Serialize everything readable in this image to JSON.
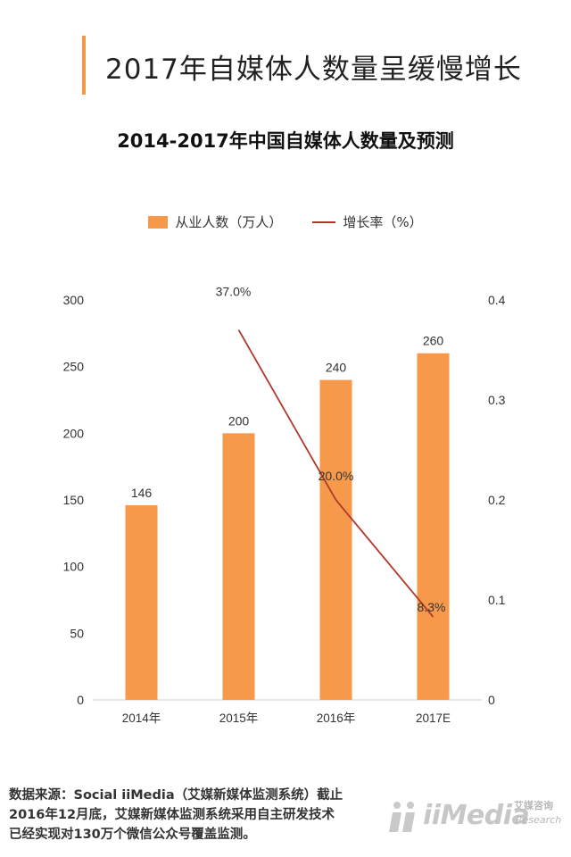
{
  "header": {
    "title": "2017年自媒体人数量呈缓慢增长",
    "accent_color": "#f29a4a"
  },
  "chart_data": {
    "type": "bar",
    "title": "2014-2017年中国自媒体人数量及预测",
    "categories": [
      "2014年",
      "2015年",
      "2016年",
      "2017E"
    ],
    "series": [
      {
        "name": "从业人数（万人）",
        "type": "bar",
        "axis": "left",
        "values": [
          146,
          200,
          240,
          260
        ],
        "labels": [
          "146",
          "200",
          "240",
          "260"
        ],
        "color": "#f7994a"
      },
      {
        "name": "增长率（%）",
        "type": "line",
        "axis": "right",
        "x": [
          "2015年",
          "2016年",
          "2017E"
        ],
        "values": [
          0.37,
          0.2,
          0.083
        ],
        "labels": [
          "37.0%",
          "20.0%",
          "8.3%"
        ],
        "color": "#b0392c"
      }
    ],
    "ylim_left": [
      0,
      300
    ],
    "yticks_left": [
      0,
      50,
      100,
      150,
      200,
      250,
      300
    ],
    "ytick_labels_left": [
      "0",
      "50",
      "100",
      "150",
      "200",
      "250",
      "300"
    ],
    "ylim_right": [
      0,
      0.4
    ],
    "yticks_right": [
      0,
      0.1,
      0.2,
      0.3,
      0.4
    ],
    "ytick_labels_right": [
      "0",
      "0.1",
      "0.2",
      "0.3",
      "0.4"
    ],
    "legend_position": "top-center",
    "grid": false
  },
  "footer": {
    "source_line1": "数据来源：Social iiMedia（艾媒新媒体监测系统）截止",
    "source_line2": "2016年12月底，艾媒新媒体监测系统采用自主研发技术",
    "source_line3": "已经实现对130万个微信公众号覆盖监测。",
    "brand_name": "iiMedia",
    "brand_cn": "艾媒咨询",
    "brand_en": "Research"
  }
}
